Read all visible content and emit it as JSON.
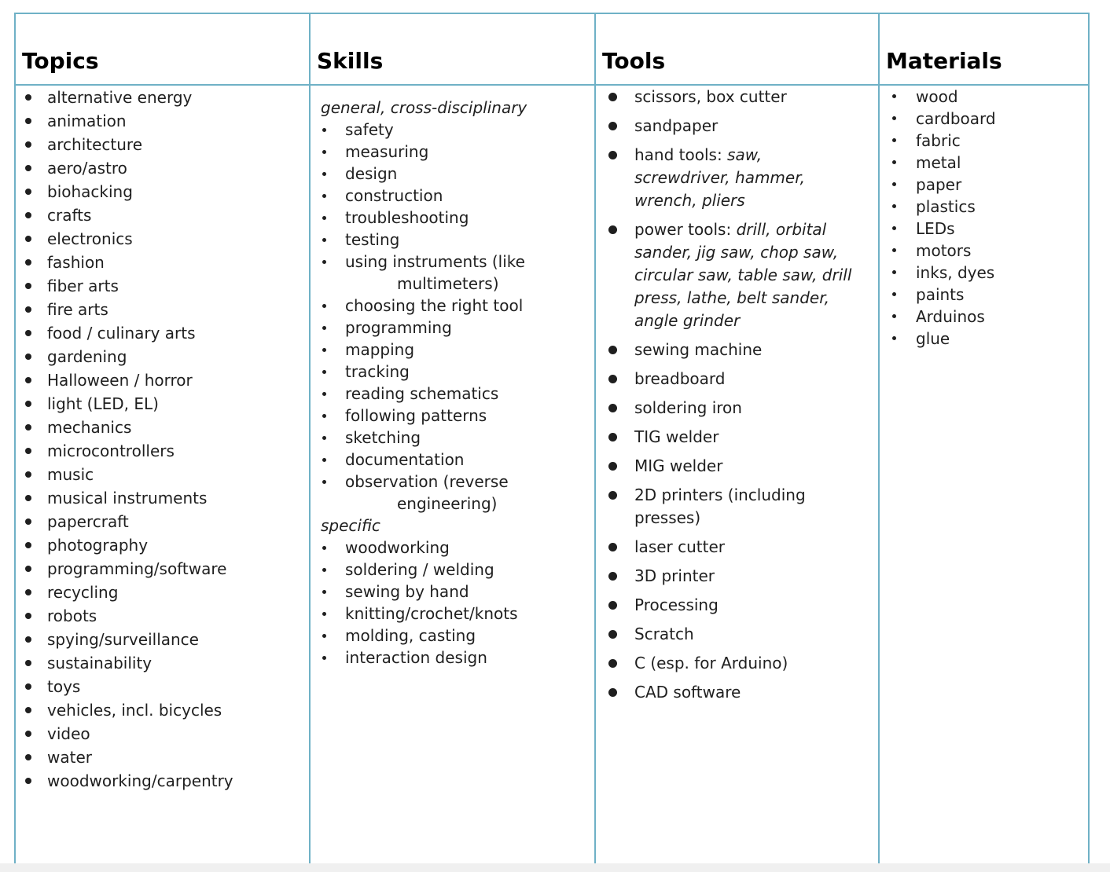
{
  "colors": {
    "table_border": "#6fb1c6",
    "text": "#1f1f1f",
    "bottom_strip": "#f0f0f0"
  },
  "table": {
    "headers": [
      "Topics",
      "Skills",
      "Tools",
      "Materials"
    ],
    "topics": {
      "items": [
        "alternative energy",
        "animation",
        "architecture",
        "aero/astro",
        "biohacking",
        "crafts",
        "electronics",
        "fashion",
        "fiber arts",
        "fire arts",
        "food / culinary arts",
        "gardening",
        "Halloween / horror",
        "light (LED, EL)",
        "mechanics",
        "microcontrollers",
        "music",
        "musical instruments",
        "papercraft",
        "photography",
        "programming/software",
        "recycling",
        "robots",
        "spying/surveillance",
        "sustainability",
        "toys",
        "vehicles, incl. bicycles",
        "video",
        "water",
        "woodworking/carpentry"
      ]
    },
    "skills": {
      "sections": [
        {
          "heading": "general, cross-disciplinary",
          "items": [
            "safety",
            "measuring",
            "design",
            "construction",
            "troubleshooting",
            "testing",
            {
              "lines": [
                "using instruments (like",
                "multimeters)"
              ]
            },
            "choosing the right tool",
            "programming",
            "mapping",
            "tracking",
            "reading schematics",
            "following patterns",
            "sketching",
            "documentation",
            {
              "lines": [
                "observation (reverse",
                "engineering)"
              ]
            }
          ]
        },
        {
          "heading": "specific",
          "items": [
            "woodworking",
            "soldering / welding",
            "sewing by hand",
            "knitting/crochet/knots",
            "molding, casting",
            "interaction design"
          ]
        }
      ]
    },
    "tools": {
      "items": [
        "scissors, box cutter",
        "sandpaper",
        {
          "lines": [
            [
              {
                "text": "hand tools: "
              },
              {
                "text": "saw,",
                "italic": true
              }
            ],
            [
              {
                "text": "screwdriver, hammer,",
                "italic": true
              }
            ],
            [
              {
                "text": "wrench, pliers",
                "italic": true
              }
            ]
          ]
        },
        {
          "lines": [
            [
              {
                "text": "power tools: "
              },
              {
                "text": "drill, orbital",
                "italic": true
              }
            ],
            [
              {
                "text": "sander, jig saw, chop saw,",
                "italic": true
              }
            ],
            [
              {
                "text": "circular saw, table saw, drill",
                "italic": true
              }
            ],
            [
              {
                "text": "press, lathe, belt sander,",
                "italic": true
              }
            ],
            [
              {
                "text": "angle grinder",
                "italic": true
              }
            ]
          ]
        },
        "sewing machine",
        "breadboard",
        "soldering iron",
        "TIG welder",
        "MIG welder",
        {
          "lines": [
            "2D printers (including",
            "presses)"
          ]
        },
        "laser cutter",
        "3D printer",
        "Processing",
        "Scratch",
        "C (esp. for Arduino)",
        "CAD software"
      ]
    },
    "materials": {
      "items": [
        "wood",
        "cardboard",
        "fabric",
        "metal",
        "paper",
        "plastics",
        "LEDs",
        "motors",
        "inks, dyes",
        "paints",
        "Arduinos",
        "glue"
      ]
    }
  }
}
